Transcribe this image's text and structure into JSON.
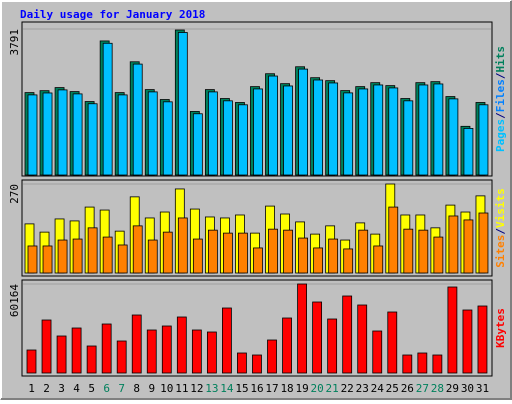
{
  "title": "Daily usage for January 2018",
  "chart_data": [
    {
      "type": "bar",
      "categories": [
        "1",
        "2",
        "3",
        "4",
        "5",
        "6",
        "7",
        "8",
        "9",
        "10",
        "11",
        "12",
        "13",
        "14",
        "15",
        "16",
        "17",
        "18",
        "19",
        "20",
        "21",
        "22",
        "23",
        "24",
        "25",
        "26",
        "27",
        "28",
        "29",
        "30",
        "31"
      ],
      "category_colors": [
        "#000000",
        "#000000",
        "#000000",
        "#000000",
        "#000000",
        "#00805c",
        "#00805c",
        "#000000",
        "#000000",
        "#000000",
        "#000000",
        "#000000",
        "#00805c",
        "#00805c",
        "#000000",
        "#000000",
        "#000000",
        "#000000",
        "#000000",
        "#00805c",
        "#00805c",
        "#000000",
        "#000000",
        "#000000",
        "#000000",
        "#000000",
        "#00805c",
        "#00805c",
        "#000000",
        "#000000",
        "#000000"
      ],
      "ylim": [
        0,
        3791
      ],
      "yticks": [
        3791
      ],
      "legend": [
        {
          "text": "Pages",
          "color": "#00c0ff"
        },
        {
          "text": "/",
          "color": "#000080"
        },
        {
          "text": "Files",
          "color": "#0080ff"
        },
        {
          "text": "/",
          "color": "#000080"
        },
        {
          "text": "Hits",
          "color": "#00805c"
        }
      ],
      "series": [
        {
          "name": "Hits",
          "color": "#00805c",
          "values": [
            2140,
            2190,
            2270,
            2166,
            1908,
            3481,
            2140,
            2940,
            2218,
            1960,
            3765,
            1650,
            2218,
            1986,
            1883,
            2295,
            2630,
            2372,
            2811,
            2527,
            2450,
            2192,
            2295,
            2398,
            2321,
            1986,
            2398,
            2424,
            2037,
            1264,
            1883
          ]
        },
        {
          "name": "Files",
          "color": "#00c0ff",
          "values": [
            2080,
            2130,
            2210,
            2106,
            1850,
            3420,
            2080,
            2880,
            2158,
            1900,
            3700,
            1590,
            2158,
            1926,
            1823,
            2235,
            2570,
            2312,
            2750,
            2467,
            2390,
            2132,
            2235,
            2338,
            2261,
            1926,
            2338,
            2364,
            1977,
            1210,
            1823
          ]
        }
      ]
    },
    {
      "type": "bar",
      "ylim": [
        0,
        270
      ],
      "yticks": [
        270
      ],
      "legend": [
        {
          "text": "Sites",
          "color": "#ff8000"
        },
        {
          "text": "/",
          "color": "#000080"
        },
        {
          "text": "Visits",
          "color": "#ffff00"
        }
      ],
      "series": [
        {
          "name": "Visits",
          "color": "#ffff00",
          "values": [
            149,
            124,
            164,
            158,
            200,
            191,
            127,
            231,
            167,
            185,
            255,
            194,
            170,
            167,
            176,
            121,
            203,
            179,
            155,
            118,
            143,
            100,
            152,
            118,
            270,
            176,
            176,
            137,
            206,
            185,
            234
          ]
        },
        {
          "name": "Sites",
          "color": "#ff8000",
          "values": [
            82,
            82,
            100,
            103,
            137,
            109,
            85,
            143,
            100,
            124,
            167,
            103,
            130,
            121,
            121,
            76,
            133,
            130,
            106,
            76,
            103,
            73,
            130,
            82,
            200,
            133,
            130,
            109,
            173,
            161,
            182
          ]
        }
      ]
    },
    {
      "type": "bar",
      "ylim": [
        0,
        60164
      ],
      "yticks": [
        60164
      ],
      "legend": [
        {
          "text": "KBytes",
          "color": "#ff0000"
        }
      ],
      "series": [
        {
          "name": "KBytes",
          "color": "#ff0000",
          "values": [
            15548,
            35828,
            25012,
            30420,
            18252,
            33124,
            21632,
            39208,
            29068,
            31772,
            37856,
            29068,
            27716,
            43940,
            13520,
            12168,
            22308,
            37180,
            60164,
            47996,
            36504,
            52052,
            45968,
            28392,
            41236,
            12168,
            13520,
            12168,
            58136,
            42588,
            45292
          ]
        }
      ]
    }
  ]
}
